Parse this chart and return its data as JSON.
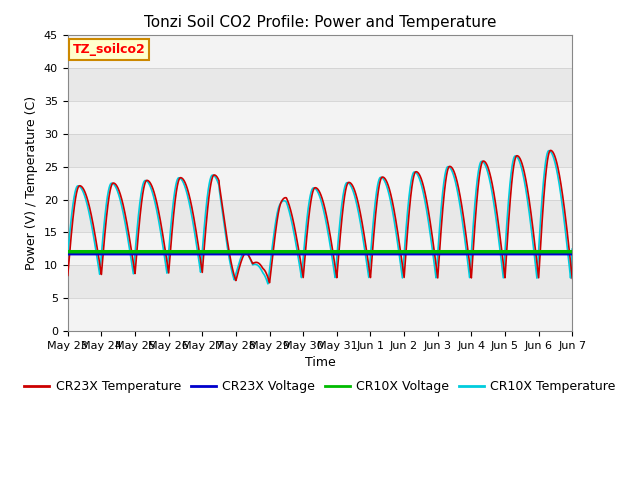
{
  "title": "Tonzi Soil CO2 Profile: Power and Temperature",
  "xlabel": "Time",
  "ylabel": "Power (V) / Temperature (C)",
  "ylim": [
    0,
    45
  ],
  "yticks": [
    0,
    5,
    10,
    15,
    20,
    25,
    30,
    35,
    40,
    45
  ],
  "background_color": "#ffffff",
  "plot_bg_color": "#e8e8e8",
  "cr23x_temp_color": "#cc0000",
  "cr23x_volt_color": "#0000cc",
  "cr10x_volt_color": "#00bb00",
  "cr10x_temp_color": "#00ccdd",
  "cr23x_volt_level": 11.75,
  "cr10x_volt_level": 12.05,
  "annotation_label": "TZ_soilco2",
  "annotation_bg": "#ffffcc",
  "annotation_border": "#cc8800",
  "tick_labels": [
    "May 23",
    "May 24",
    "May 25",
    "May 26",
    "May 27",
    "May 28",
    "May 29",
    "May 30",
    "May 31",
    "Jun 1",
    "Jun 2",
    "Jun 3",
    "Jun 4",
    "Jun 5",
    "Jun 6",
    "Jun 7"
  ],
  "title_fontsize": 11,
  "axis_label_fontsize": 9,
  "tick_fontsize": 8,
  "legend_fontsize": 9,
  "linewidth": 1.2,
  "volt_linewidth": 2.5,
  "figwidth": 6.4,
  "figheight": 4.8,
  "dpi": 100
}
